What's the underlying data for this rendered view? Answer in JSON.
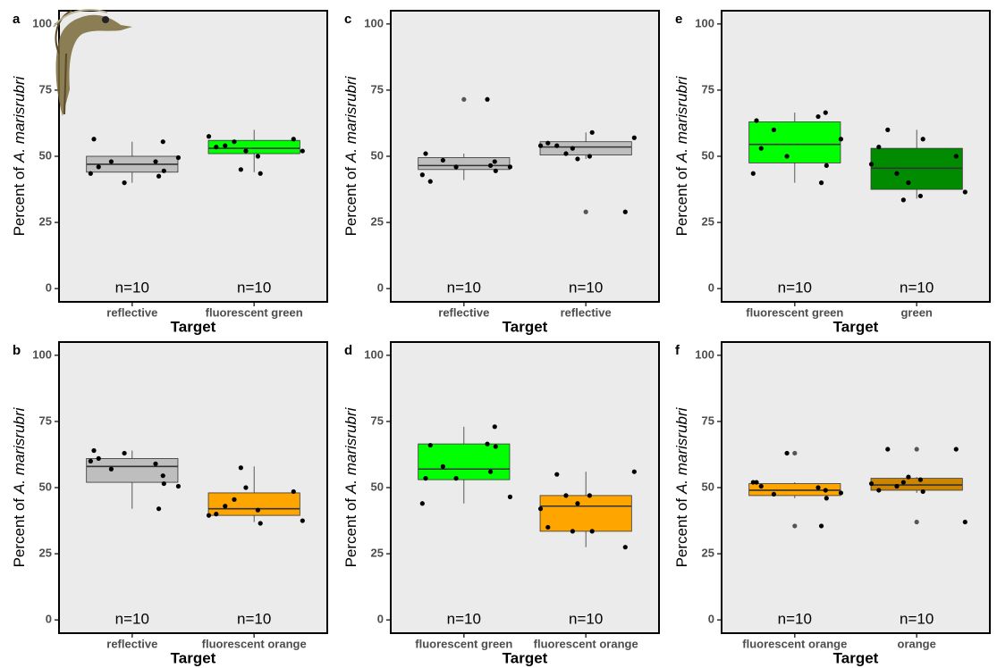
{
  "chart_data": [
    {
      "type": "box",
      "label": "a",
      "ylabel": "Percent of",
      "ylabel_italic": "A. marisrubri",
      "xlabel": "Target",
      "categories": [
        "reflective",
        "fluorescent green"
      ],
      "colors": [
        "#bebebe",
        "#00ff00"
      ],
      "n_labels": [
        "n=10",
        "n=10"
      ],
      "q1": [
        44,
        51
      ],
      "median": [
        47,
        53
      ],
      "q3": [
        50,
        56
      ],
      "whisker_low": [
        40,
        44
      ],
      "whisker_high": [
        55.5,
        60
      ],
      "outliers": [
        [],
        []
      ],
      "points": [
        [
          48,
          43.5,
          40,
          44.5,
          46,
          55.5,
          56.5,
          49.5,
          48,
          42.5
        ],
        [
          43.5,
          45,
          55.5,
          50,
          53.5,
          57.5,
          56.5,
          54,
          52,
          52
        ]
      ],
      "ylim": [
        -5,
        105
      ],
      "yticks": [
        0,
        25,
        50,
        75,
        100
      ]
    },
    {
      "type": "box",
      "label": "b",
      "ylabel": "Percent of",
      "ylabel_italic": "A. marisrubri",
      "xlabel": "Target",
      "categories": [
        "reflective",
        "fluorescent orange"
      ],
      "colors": [
        "#bebebe",
        "#ffa500"
      ],
      "n_labels": [
        "n=10",
        "n=10"
      ],
      "q1": [
        52,
        39.5
      ],
      "median": [
        58,
        42
      ],
      "q3": [
        61,
        48
      ],
      "whisker_low": [
        42,
        37
      ],
      "whisker_high": [
        64,
        58
      ],
      "outliers": [
        [],
        []
      ],
      "points": [
        [
          59,
          60,
          63,
          51.5,
          61,
          54.5,
          64,
          50.5,
          57,
          42
        ],
        [
          36.5,
          57.5,
          45.5,
          41.5,
          40,
          39.5,
          48.5,
          43,
          50,
          37.5
        ]
      ],
      "ylim": [
        -5,
        105
      ],
      "yticks": [
        0,
        25,
        50,
        75,
        100
      ]
    },
    {
      "type": "box",
      "label": "c",
      "ylabel": "Percent of",
      "ylabel_italic": "A. marisrubri",
      "xlabel": "Target",
      "categories": [
        "reflective",
        "reflective"
      ],
      "colors": [
        "#bebebe",
        "#bebebe"
      ],
      "n_labels": [
        "n=10",
        "n=10"
      ],
      "q1": [
        45,
        50.5
      ],
      "median": [
        46.5,
        53.5
      ],
      "q3": [
        49.5,
        55.5
      ],
      "whisker_low": [
        41,
        49
      ],
      "whisker_high": [
        51,
        59
      ],
      "outliers": [
        [
          71.5
        ],
        [
          29
        ]
      ],
      "points": [
        [
          71.5,
          43,
          46,
          44.5,
          40.5,
          48,
          51,
          46,
          48.5,
          46.5
        ],
        [
          59,
          53,
          51,
          50,
          55,
          54,
          29,
          54,
          49,
          57
        ]
      ],
      "ylim": [
        -5,
        105
      ],
      "yticks": [
        0,
        25,
        50,
        75,
        100
      ]
    },
    {
      "type": "box",
      "label": "d",
      "ylabel": "Percent of",
      "ylabel_italic": "A. marisrubri",
      "xlabel": "Target",
      "categories": [
        "fluorescent green",
        "fluorescent orange"
      ],
      "colors": [
        "#00ff00",
        "#ffa500"
      ],
      "n_labels": [
        "n=10",
        "n=10"
      ],
      "q1": [
        53,
        33.5
      ],
      "median": [
        57,
        43
      ],
      "q3": [
        66.5,
        47
      ],
      "whisker_low": [
        44,
        27.5
      ],
      "whisker_high": [
        73,
        56
      ],
      "outliers": [
        [],
        []
      ],
      "points": [
        [
          66.5,
          44,
          53.5,
          65.5,
          66,
          73,
          53.5,
          46.5,
          58,
          56
        ],
        [
          33.5,
          33.5,
          47,
          47,
          35,
          42,
          27.5,
          55,
          44,
          56
        ]
      ],
      "ylim": [
        -5,
        105
      ],
      "yticks": [
        0,
        25,
        50,
        75,
        100
      ]
    },
    {
      "type": "box",
      "label": "e",
      "ylabel": "Percent of",
      "ylabel_italic": "A. marisrubri",
      "xlabel": "Target",
      "categories": [
        "fluorescent green",
        "green"
      ],
      "colors": [
        "#00ff00",
        "#008b00"
      ],
      "n_labels": [
        "n=10",
        "n=10"
      ],
      "q1": [
        47.5,
        37.5
      ],
      "median": [
        54.5,
        45.5
      ],
      "q3": [
        63,
        53
      ],
      "whisker_low": [
        40,
        34
      ],
      "whisker_high": [
        66.5,
        60
      ],
      "outliers": [
        [],
        []
      ],
      "points": [
        [
          65,
          43.5,
          50,
          46.5,
          53,
          66.5,
          63.5,
          56.5,
          60,
          40
        ],
        [
          56.5,
          33.5,
          43.5,
          35,
          53.5,
          47,
          50,
          60,
          40,
          36.5
        ]
      ],
      "ylim": [
        -5,
        105
      ],
      "yticks": [
        0,
        25,
        50,
        75,
        100
      ]
    },
    {
      "type": "box",
      "label": "f",
      "ylabel": "Percent of",
      "ylabel_italic": "A. marisrubri",
      "xlabel": "Target",
      "categories": [
        "fluorescent orange",
        "orange"
      ],
      "colors": [
        "#ffa500",
        "#cd8500"
      ],
      "n_labels": [
        "n=10",
        "n=10"
      ],
      "q1": [
        47,
        49
      ],
      "median": [
        49,
        51
      ],
      "q3": [
        51.5,
        53.5
      ],
      "whisker_low": [
        46,
        48
      ],
      "whisker_high": [
        52,
        54
      ],
      "outliers": [
        [
          63,
          35.5
        ],
        [
          64.5,
          37
        ]
      ],
      "points": [
        [
          50,
          52,
          63,
          46,
          50.5,
          49,
          52,
          48,
          47.5,
          35.5
        ],
        [
          48.5,
          52,
          50.5,
          53,
          49,
          51.5,
          64.5,
          64.5,
          54,
          37
        ]
      ],
      "ylim": [
        -5,
        105
      ],
      "yticks": [
        0,
        25,
        50,
        75,
        100
      ]
    }
  ]
}
